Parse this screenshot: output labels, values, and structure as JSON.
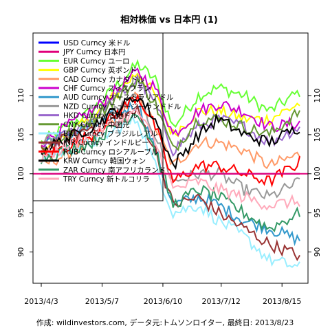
{
  "chart_data": {
    "type": "line",
    "title": "相対株価 vs 日本円 (1)",
    "footer": "作成: wildinvestors.com, データ元:トムソンロイター, 最終日: 2013/8/23",
    "xlabel": "",
    "ylabel": "",
    "ylim": [
      86,
      118
    ],
    "y_ticks": [
      90,
      95,
      100,
      105,
      110
    ],
    "x_ticks": [
      "2013/4/3",
      "2013/5/7",
      "2013/6/10",
      "2013/7/12",
      "2013/8/15"
    ],
    "x_tick_index": [
      0,
      24,
      48,
      71,
      95
    ],
    "reference_line": 100,
    "grid": false,
    "legend_position": "top-left",
    "num_points": 103,
    "series": [
      {
        "name": "USD Curncy 米ドル",
        "color": "#0000ff",
        "anchors": [
          [
            0,
            100
          ],
          [
            102,
            100
          ]
        ]
      },
      {
        "name": "JPY Curncy 日本円",
        "color": "#e0007a",
        "anchors": [
          [
            0,
            100
          ],
          [
            102,
            100
          ]
        ]
      },
      {
        "name": "EUR Curncy ユーロ",
        "color": "#66ff33",
        "anchors": [
          [
            0,
            104
          ],
          [
            20,
            108
          ],
          [
            38,
            114
          ],
          [
            45,
            112
          ],
          [
            52,
            106
          ],
          [
            62,
            110
          ],
          [
            70,
            111
          ],
          [
            80,
            110
          ],
          [
            90,
            108
          ],
          [
            102,
            110.5
          ]
        ]
      },
      {
        "name": "GBP Curncy 英ポンド",
        "color": "#ffff00",
        "anchors": [
          [
            0,
            103
          ],
          [
            20,
            107
          ],
          [
            38,
            113
          ],
          [
            45,
            110
          ],
          [
            52,
            105
          ],
          [
            62,
            108
          ],
          [
            70,
            108
          ],
          [
            80,
            107
          ],
          [
            90,
            107
          ],
          [
            102,
            109
          ]
        ]
      },
      {
        "name": "CAD Curncy カナダドル",
        "color": "#ff9966",
        "anchors": [
          [
            0,
            101
          ],
          [
            20,
            104
          ],
          [
            38,
            110
          ],
          [
            45,
            106
          ],
          [
            52,
            101
          ],
          [
            62,
            104
          ],
          [
            70,
            104
          ],
          [
            80,
            103
          ],
          [
            90,
            101
          ],
          [
            102,
            102.5
          ]
        ]
      },
      {
        "name": "CHF Curncy スイスフラン",
        "color": "#cc00cc",
        "anchors": [
          [
            0,
            104
          ],
          [
            20,
            108
          ],
          [
            38,
            113
          ],
          [
            45,
            111
          ],
          [
            52,
            105
          ],
          [
            62,
            108
          ],
          [
            70,
            109
          ],
          [
            80,
            108
          ],
          [
            90,
            106
          ],
          [
            102,
            106.5
          ]
        ]
      },
      {
        "name": "AUD Curncy オーストラリアドル",
        "color": "#3399cc",
        "anchors": [
          [
            0,
            104
          ],
          [
            20,
            106
          ],
          [
            38,
            109
          ],
          [
            45,
            103
          ],
          [
            52,
            96
          ],
          [
            62,
            97
          ],
          [
            70,
            96
          ],
          [
            80,
            94
          ],
          [
            90,
            93
          ],
          [
            102,
            91.5
          ]
        ]
      },
      {
        "name": "NZD Curncy ニュージーランドドル",
        "color": "#999999",
        "anchors": [
          [
            0,
            104
          ],
          [
            20,
            106
          ],
          [
            38,
            110
          ],
          [
            45,
            105
          ],
          [
            52,
            99
          ],
          [
            62,
            100
          ],
          [
            70,
            100
          ],
          [
            80,
            98
          ],
          [
            90,
            97
          ],
          [
            102,
            99
          ]
        ]
      },
      {
        "name": "HKD Curncy 香港ドル",
        "color": "#9966cc",
        "anchors": [
          [
            0,
            103
          ],
          [
            20,
            107
          ],
          [
            38,
            112
          ],
          [
            45,
            109
          ],
          [
            52,
            103
          ],
          [
            62,
            106
          ],
          [
            70,
            107
          ],
          [
            80,
            106
          ],
          [
            90,
            104
          ],
          [
            102,
            106
          ]
        ]
      },
      {
        "name": "CNY Curncy 中国元",
        "color": "#669933",
        "anchors": [
          [
            0,
            103
          ],
          [
            20,
            107
          ],
          [
            38,
            112
          ],
          [
            45,
            109
          ],
          [
            52,
            103
          ],
          [
            62,
            107
          ],
          [
            70,
            107
          ],
          [
            80,
            106
          ],
          [
            90,
            105
          ],
          [
            102,
            108
          ]
        ]
      },
      {
        "name": "BRL Curncy ブラジルレアル",
        "color": "#99eeff",
        "anchors": [
          [
            0,
            102
          ],
          [
            20,
            104
          ],
          [
            38,
            107
          ],
          [
            45,
            101
          ],
          [
            52,
            95
          ],
          [
            62,
            96
          ],
          [
            70,
            94
          ],
          [
            80,
            92
          ],
          [
            90,
            89
          ],
          [
            102,
            88
          ]
        ]
      },
      {
        "name": "INR Curncy インドルピー",
        "color": "#993333",
        "anchors": [
          [
            0,
            103
          ],
          [
            20,
            106
          ],
          [
            38,
            108
          ],
          [
            45,
            103
          ],
          [
            52,
            96
          ],
          [
            62,
            97
          ],
          [
            70,
            95
          ],
          [
            80,
            93
          ],
          [
            90,
            91
          ],
          [
            102,
            89.5
          ]
        ]
      },
      {
        "name": "RUB Curncy ロシアルーブル",
        "color": "#ff0000",
        "anchors": [
          [
            0,
            102
          ],
          [
            20,
            105
          ],
          [
            38,
            110
          ],
          [
            45,
            106
          ],
          [
            52,
            99
          ],
          [
            62,
            101
          ],
          [
            70,
            101
          ],
          [
            80,
            100
          ],
          [
            90,
            99
          ],
          [
            102,
            101.5
          ]
        ]
      },
      {
        "name": "KRW Curncy 韓国ウォン",
        "color": "#000000",
        "anchors": [
          [
            0,
            103
          ],
          [
            20,
            106
          ],
          [
            38,
            110
          ],
          [
            45,
            107
          ],
          [
            52,
            101
          ],
          [
            62,
            105
          ],
          [
            70,
            107
          ],
          [
            80,
            105
          ],
          [
            90,
            104
          ],
          [
            102,
            106
          ]
        ]
      },
      {
        "name": "ZAR Curncy 南アフリカランド",
        "color": "#339966",
        "anchors": [
          [
            0,
            102
          ],
          [
            20,
            104
          ],
          [
            38,
            108
          ],
          [
            45,
            103
          ],
          [
            52,
            96
          ],
          [
            62,
            98
          ],
          [
            70,
            97
          ],
          [
            80,
            95
          ],
          [
            90,
            93
          ],
          [
            102,
            95
          ]
        ]
      },
      {
        "name": "TRY Curncy 新トルコリラ",
        "color": "#ffaabb",
        "anchors": [
          [
            0,
            102
          ],
          [
            20,
            105
          ],
          [
            38,
            108
          ],
          [
            45,
            104
          ],
          [
            52,
            98
          ],
          [
            62,
            99
          ],
          [
            70,
            98
          ],
          [
            80,
            97
          ],
          [
            90,
            96
          ],
          [
            102,
            96.5
          ]
        ]
      }
    ]
  }
}
